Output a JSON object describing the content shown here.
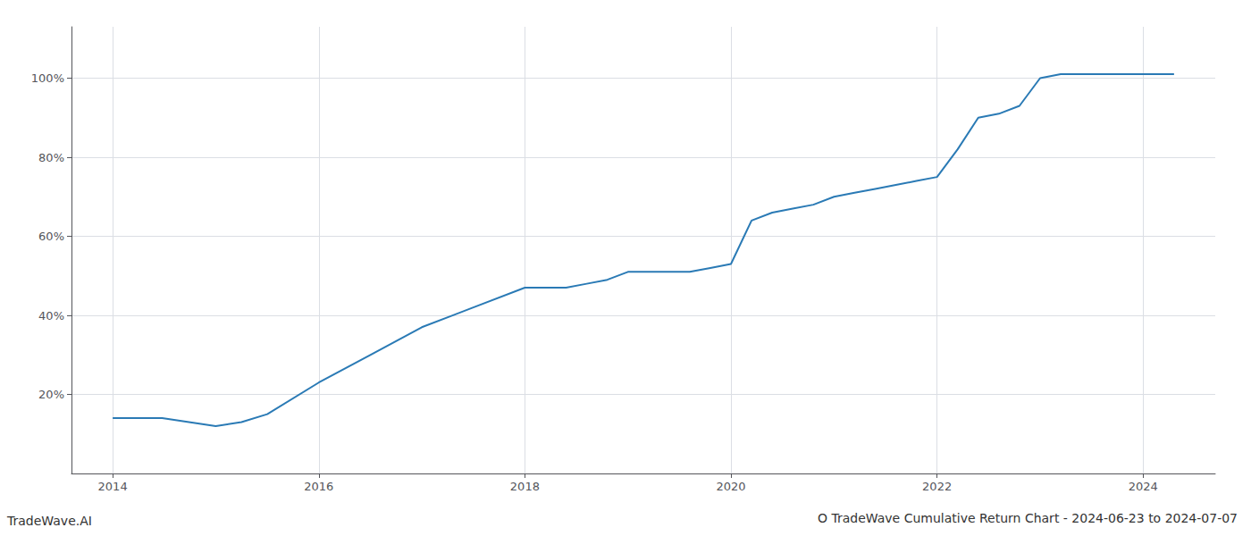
{
  "chart_data": {
    "type": "line",
    "title": "O TradeWave Cumulative Return Chart - 2024-06-23 to 2024-07-07",
    "annotations": [
      "TradeWave.AI"
    ],
    "x": [
      2014,
      2014.48,
      2015.0,
      2015.25,
      2015.5,
      2016.0,
      2016.5,
      2017.0,
      2017.5,
      2018.0,
      2018.2,
      2018.4,
      2018.6,
      2018.8,
      2019.0,
      2019.2,
      2019.4,
      2019.6,
      2019.8,
      2020.0,
      2020.2,
      2020.4,
      2020.6,
      2020.8,
      2021.0,
      2021.2,
      2021.4,
      2021.6,
      2021.8,
      2022.0,
      2022.2,
      2022.4,
      2022.6,
      2022.8,
      2023.0,
      2023.2,
      2023.4,
      2023.6,
      2024.0,
      2024.3
    ],
    "values": [
      14,
      14,
      12,
      13,
      15,
      23,
      30,
      37,
      42,
      47,
      47,
      47,
      48,
      49,
      51,
      51,
      51,
      51,
      52,
      53,
      64,
      66,
      67,
      68,
      70,
      71,
      72,
      73,
      74,
      75,
      82,
      90,
      91,
      93,
      100,
      101,
      101,
      101,
      101,
      101
    ],
    "color": "#2a7ab5",
    "xlim": [
      2013.6,
      2024.7
    ],
    "ylim": [
      0,
      113
    ],
    "xticks": [
      2014,
      2016,
      2018,
      2020,
      2022,
      2024
    ],
    "yticks": [
      {
        "value": 20,
        "label": "20%"
      },
      {
        "value": 40,
        "label": "40%"
      },
      {
        "value": 60,
        "label": "60%"
      },
      {
        "value": 80,
        "label": "80%"
      },
      {
        "value": 100,
        "label": "100%"
      }
    ],
    "grid": true
  }
}
